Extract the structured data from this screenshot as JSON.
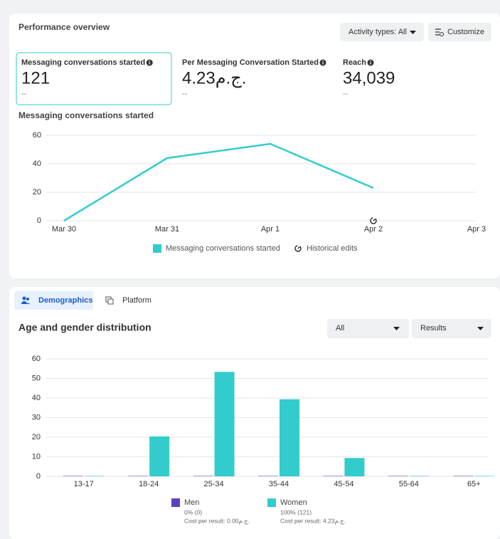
{
  "performance": {
    "title": "Performance overview",
    "activity_filter": "Activity types: All",
    "customize": "Customize",
    "metrics": [
      {
        "label": "Messaging conversations started",
        "value": "121",
        "change": "--"
      },
      {
        "label": "Per Messaging Conversation Started",
        "value": "4.23ج.م.",
        "change": "--"
      },
      {
        "label": "Reach",
        "value": "34,039",
        "change": "--"
      }
    ]
  },
  "chart_data": [
    {
      "type": "line",
      "title": "Messaging conversations started",
      "categories": [
        "Mar 30",
        "Mar 31",
        "Apr 1",
        "Apr 2",
        "Apr 3"
      ],
      "series": [
        {
          "name": "Messaging conversations started",
          "color": "#33cccc",
          "values": [
            0,
            44,
            54,
            23,
            null
          ]
        }
      ],
      "ylim": [
        0,
        60
      ],
      "yticks": [
        0,
        20,
        40,
        60
      ],
      "grid": true,
      "annotation": {
        "label": "Historical edits",
        "category": "Apr 2"
      }
    },
    {
      "type": "bar",
      "title": "Age and gender distribution",
      "categories": [
        "13-17",
        "18-24",
        "25-34",
        "35-44",
        "45-54",
        "55-64",
        "65+"
      ],
      "series": [
        {
          "name": "Men",
          "color": "#5e3fbe",
          "values": [
            0,
            0,
            0,
            0,
            0,
            0,
            0
          ],
          "share": "0% (0)",
          "cost": "Cost per result: 0.00ج.م."
        },
        {
          "name": "Women",
          "color": "#33cccc",
          "values": [
            0,
            20,
            53,
            39,
            9,
            0,
            0
          ],
          "share": "100% (121)",
          "cost": "Cost per result: 4.23ج.م."
        }
      ],
      "ylim": [
        0,
        60
      ],
      "yticks": [
        0,
        10,
        20,
        30,
        40,
        50,
        60
      ],
      "grid": true
    }
  ],
  "breakdown": {
    "tabs": [
      "Demographics",
      "Platform"
    ],
    "filters": [
      "All",
      "Results"
    ]
  }
}
